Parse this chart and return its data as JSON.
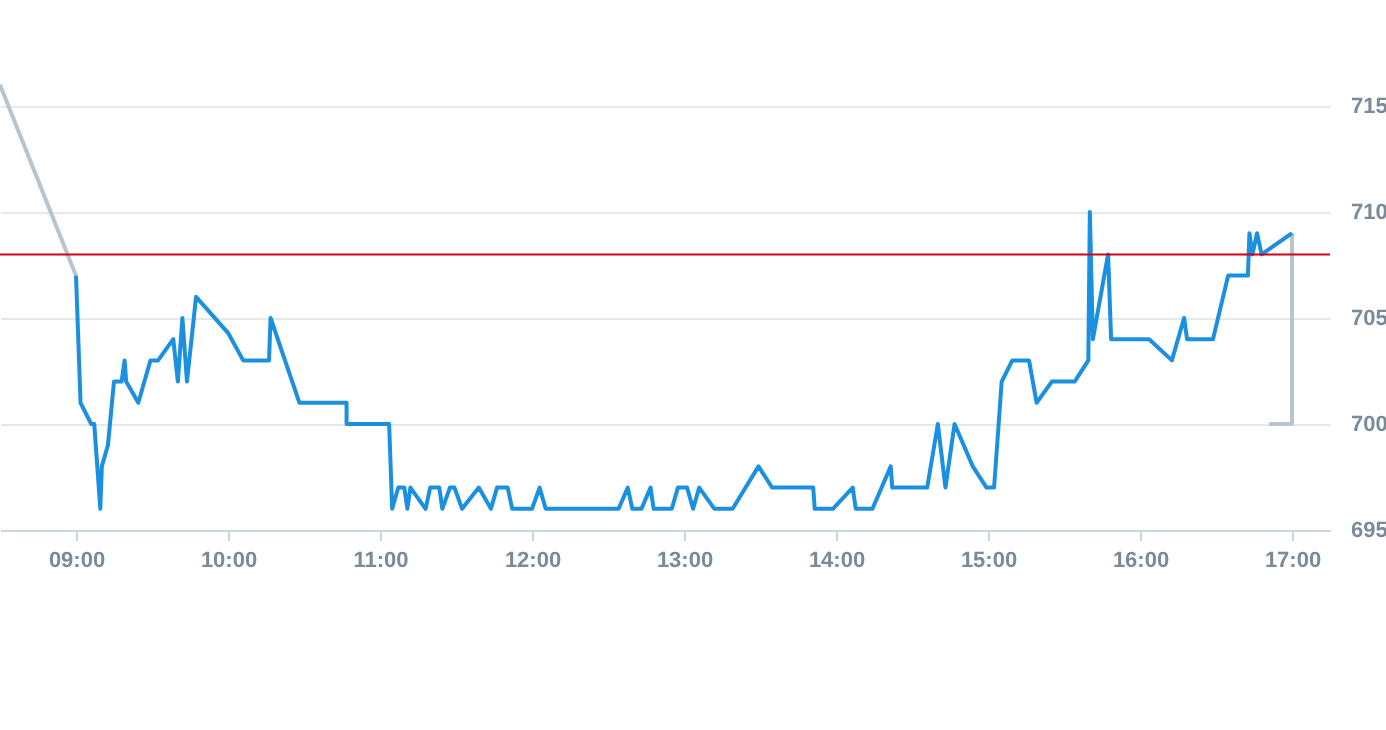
{
  "chart_data": {
    "type": "line",
    "xlim": [
      8.5,
      17.25
    ],
    "ylim": [
      695,
      720
    ],
    "xticks": [
      {
        "value": 9,
        "label": "09:00"
      },
      {
        "value": 10,
        "label": "10:00"
      },
      {
        "value": 11,
        "label": "11:00"
      },
      {
        "value": 12,
        "label": "12:00"
      },
      {
        "value": 13,
        "label": "13:00"
      },
      {
        "value": 14,
        "label": "14:00"
      },
      {
        "value": 15,
        "label": "15:00"
      },
      {
        "value": 16,
        "label": "16:00"
      },
      {
        "value": 17,
        "label": "17:00"
      }
    ],
    "yticks": [
      695,
      700,
      705,
      710,
      715
    ],
    "grid": "y",
    "line_style": "solid",
    "marker": "none",
    "ref_lines": [
      {
        "axis": "y",
        "value": 708,
        "color": "#d0021b"
      }
    ],
    "series": [
      {
        "color": "#b8c4ce",
        "x": [
          8.5,
          9.0
        ],
        "values": [
          716,
          707
        ]
      },
      {
        "color": "#b8c4ce",
        "x": [
          16.85,
          17.0,
          17.0
        ],
        "values": [
          700,
          700,
          709
        ]
      },
      {
        "color": "#1b8fe0",
        "x": [
          9.0,
          9.03,
          9.1,
          9.12,
          9.16,
          9.17,
          9.21,
          9.25,
          9.3,
          9.32,
          9.33,
          9.41,
          9.49,
          9.54,
          9.64,
          9.67,
          9.7,
          9.73,
          9.79,
          10.0,
          10.1,
          10.27,
          10.28,
          10.47,
          10.78,
          10.78,
          11.06,
          11.08,
          11.12,
          11.16,
          11.18,
          11.2,
          11.3,
          11.33,
          11.39,
          11.41,
          11.46,
          11.49,
          11.54,
          11.65,
          11.73,
          11.77,
          11.84,
          11.87,
          12.0,
          12.05,
          12.09,
          12.57,
          12.63,
          12.66,
          12.72,
          12.78,
          12.8,
          12.92,
          12.96,
          13.02,
          13.06,
          13.1,
          13.2,
          13.32,
          13.49,
          13.58,
          13.85,
          13.86,
          13.98,
          14.11,
          14.13,
          14.24,
          14.36,
          14.37,
          14.6,
          14.67,
          14.72,
          14.78,
          14.9,
          14.99,
          15.04,
          15.09,
          15.16,
          15.27,
          15.32,
          15.42,
          15.57,
          15.66,
          15.67,
          15.69,
          15.79,
          15.81,
          16.06,
          16.21,
          16.29,
          16.31,
          16.48,
          16.58,
          16.71,
          16.72,
          16.74,
          16.77,
          16.8,
          17.0
        ],
        "values": [
          707,
          701,
          700,
          700,
          696,
          698,
          699,
          702,
          702,
          703,
          702,
          701,
          703,
          703,
          704,
          702,
          705,
          702,
          706,
          704.3,
          703,
          703,
          705,
          701,
          701,
          700,
          700,
          696,
          697,
          697,
          696,
          697,
          696,
          697,
          697,
          696,
          697,
          697,
          696,
          697,
          696,
          697,
          697,
          696,
          696,
          697,
          696,
          696,
          697,
          696,
          696,
          697,
          696,
          696,
          697,
          697,
          696,
          697,
          696,
          696,
          698,
          697,
          697,
          696,
          696,
          697,
          696,
          696,
          698,
          697,
          697,
          700,
          697,
          700,
          698,
          697,
          697,
          702,
          703,
          703,
          701,
          702,
          702,
          703,
          710,
          704,
          708,
          704,
          704,
          703,
          705,
          704,
          704,
          707,
          707,
          709,
          708,
          709,
          708,
          709
        ]
      }
    ]
  }
}
